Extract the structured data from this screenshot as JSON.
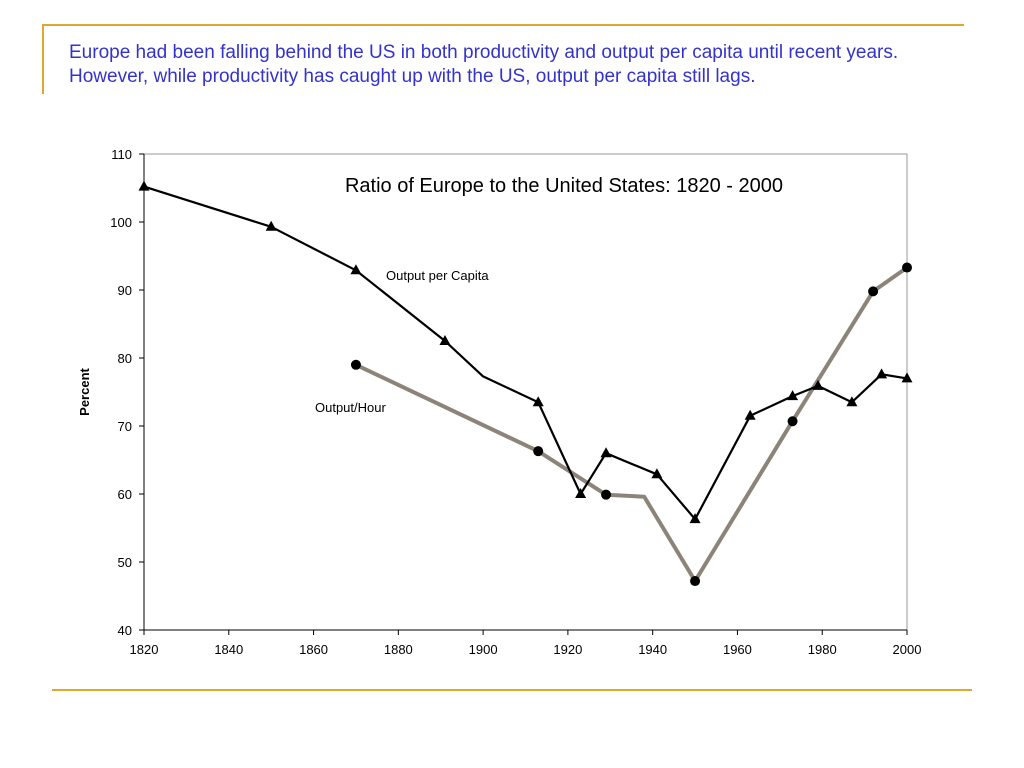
{
  "slide": {
    "caption": "Europe had been falling behind the US in both productivity and output per capita until recent years.  However, while productivity has caught up with the US, output per capita still lags.",
    "caption_color": "#3333cc",
    "rule_color": "#e0a82e"
  },
  "chart_data": {
    "type": "line",
    "title": "Ratio of Europe to the United States: 1820 - 2000",
    "xlabel": "",
    "ylabel": "Percent",
    "xlim": [
      1820,
      2000
    ],
    "ylim": [
      40,
      110
    ],
    "x_ticks": [
      1820,
      1840,
      1860,
      1880,
      1900,
      1920,
      1940,
      1960,
      1980,
      2000
    ],
    "y_ticks": [
      40,
      50,
      60,
      70,
      80,
      90,
      100,
      110
    ],
    "grid": false,
    "legend": "none",
    "series": [
      {
        "name": "Output per Capita",
        "color": "#000000",
        "marker": "triangle",
        "points": [
          {
            "x": 1820,
            "y": 105.2,
            "marker": true
          },
          {
            "x": 1850,
            "y": 99.3,
            "marker": true
          },
          {
            "x": 1870,
            "y": 92.9,
            "marker": true
          },
          {
            "x": 1891,
            "y": 82.5,
            "marker": true
          },
          {
            "x": 1900,
            "y": 77.3,
            "marker": false
          },
          {
            "x": 1913,
            "y": 73.5,
            "marker": true
          },
          {
            "x": 1923,
            "y": 60.0,
            "marker": true
          },
          {
            "x": 1929,
            "y": 66.0,
            "marker": true
          },
          {
            "x": 1941,
            "y": 62.9,
            "marker": true
          },
          {
            "x": 1950,
            "y": 56.3,
            "marker": true
          },
          {
            "x": 1963,
            "y": 71.5,
            "marker": true
          },
          {
            "x": 1973,
            "y": 74.4,
            "marker": true
          },
          {
            "x": 1979,
            "y": 75.9,
            "marker": true
          },
          {
            "x": 1987,
            "y": 73.5,
            "marker": true
          },
          {
            "x": 1994,
            "y": 77.6,
            "marker": true
          },
          {
            "x": 2000,
            "y": 77.0,
            "marker": true
          }
        ]
      },
      {
        "name": "Output/Hour",
        "color": "#8c8478",
        "marker": "circle",
        "points": [
          {
            "x": 1870,
            "y": 79.0,
            "marker": true
          },
          {
            "x": 1913,
            "y": 66.3,
            "marker": true
          },
          {
            "x": 1929,
            "y": 59.9,
            "marker": true
          },
          {
            "x": 1938,
            "y": 59.6,
            "marker": false
          },
          {
            "x": 1950,
            "y": 47.2,
            "marker": true
          },
          {
            "x": 1973,
            "y": 70.7,
            "marker": true
          },
          {
            "x": 1992,
            "y": 89.8,
            "marker": true
          },
          {
            "x": 2000,
            "y": 93.3,
            "marker": true
          }
        ]
      }
    ]
  }
}
